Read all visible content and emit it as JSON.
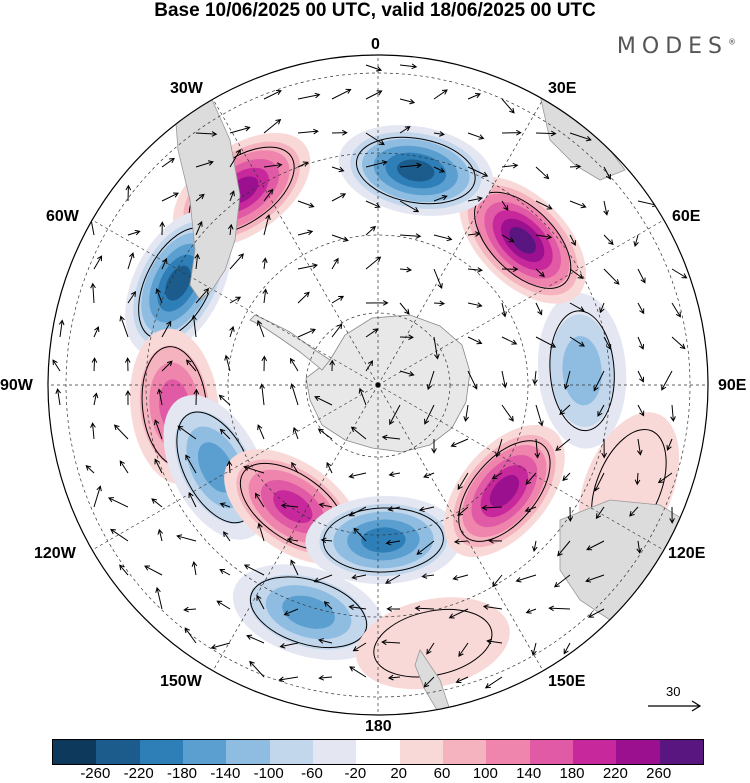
{
  "title": "Base 10/06/2025 00 UTC, valid 18/06/2025 00 UTC",
  "brand": "MODES",
  "longitude_labels": {
    "n": "0",
    "ne": "30E",
    "e1": "60E",
    "e": "90E",
    "se1": "120E",
    "se": "150E",
    "s": "180",
    "sw": "150W",
    "w2": "120W",
    "w": "90W",
    "nw1": "60W",
    "nw": "30W"
  },
  "vector_scale_label": "30",
  "colorbar": {
    "colors": [
      "#0d3a5c",
      "#1b5c8c",
      "#2e7fb8",
      "#5b9fd0",
      "#8fbde2",
      "#c2d6ec",
      "#e4e6f2",
      "#ffffff",
      "#f9d8d8",
      "#f5b2bf",
      "#ef85ad",
      "#e05aa5",
      "#c7289b",
      "#9a108f",
      "#5a1680"
    ],
    "tick_labels": [
      "-260",
      "-220",
      "-180",
      "-140",
      "-100",
      "-60",
      "-20",
      "20",
      "60",
      "100",
      "140",
      "180",
      "220",
      "260"
    ]
  },
  "anomalies": [
    {
      "sign": "pos",
      "lon": -35,
      "r": 0.72,
      "strength": 0.85
    },
    {
      "sign": "neg",
      "lon": -63,
      "r": 0.68,
      "strength": 0.9
    },
    {
      "sign": "pos",
      "lon": -96,
      "r": 0.62,
      "strength": 0.6
    },
    {
      "sign": "neg",
      "lon": -117,
      "r": 0.55,
      "strength": 0.55
    },
    {
      "sign": "pos",
      "lon": -145,
      "r": 0.45,
      "strength": 0.75
    },
    {
      "sign": "neg",
      "lon": -163,
      "r": 0.72,
      "strength": 0.55
    },
    {
      "sign": "neg",
      "lon": 178,
      "r": 0.47,
      "strength": 0.65
    },
    {
      "sign": "pos",
      "lon": 130,
      "r": 0.5,
      "strength": 0.8
    },
    {
      "sign": "neg",
      "lon": 86,
      "r": 0.62,
      "strength": 0.45
    },
    {
      "sign": "pos",
      "lon": 45,
      "r": 0.62,
      "strength": 0.95
    },
    {
      "sign": "neg",
      "lon": 10,
      "r": 0.66,
      "strength": 0.8
    },
    {
      "sign": "pos",
      "lon": 168,
      "r": 0.8,
      "strength": 0.2
    },
    {
      "sign": "pos",
      "lon": 112,
      "r": 0.82,
      "strength": 0.2
    }
  ]
}
